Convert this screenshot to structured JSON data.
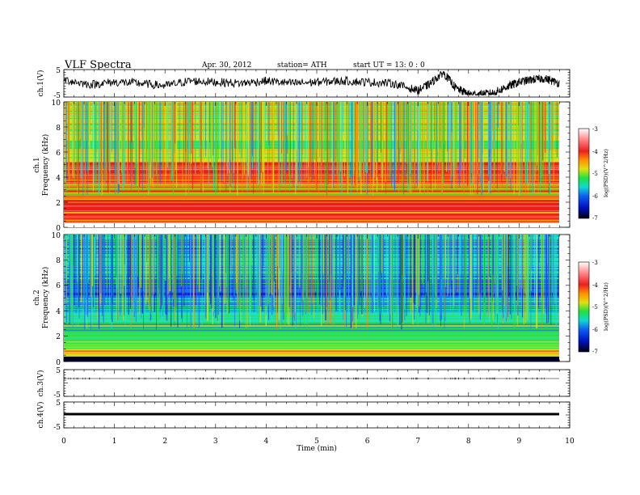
{
  "header": {
    "title": "VLF  Spectra",
    "date": "Apr. 30, 2012",
    "station": "station= ATH",
    "start": "start  UT  =   13: 0  : 0"
  },
  "panels": {
    "ch1_label": "ch.1(V)",
    "ch3_label": "ch.3(V)",
    "ch4_label": "ch.4(V)",
    "spec1_label": "ch.1",
    "spec2_label": "ch.2",
    "freq_label": "Frequency  (kHz)",
    "colorbar_label": "log(PSD)(V^2/Hz)"
  },
  "chart_data": [
    {
      "type": "line",
      "name": "ch1-waveform",
      "ylabel": "ch.1(V)",
      "ylim": [
        -5,
        5
      ],
      "yticks": [
        "5",
        "-5"
      ],
      "x": [
        0.0,
        0.5,
        1.0,
        1.5,
        2.0,
        2.5,
        3.0,
        3.5,
        4.0,
        4.5,
        5.0,
        5.5,
        6.0,
        6.5,
        7.0,
        7.25,
        7.5,
        7.75,
        8.0,
        8.25,
        8.5,
        8.75,
        9.0,
        9.25,
        9.5,
        9.8
      ],
      "values": [
        1.5,
        -0.5,
        0.5,
        0.0,
        -1.0,
        1.0,
        0.5,
        0.0,
        1.0,
        0.0,
        0.5,
        1.0,
        0.5,
        0.0,
        -3.0,
        0.0,
        4.5,
        -2.0,
        -4.5,
        -4.5,
        -4.0,
        -1.5,
        0.5,
        1.5,
        2.0,
        0.0
      ]
    },
    {
      "type": "heatmap",
      "name": "ch1-spectrogram",
      "ylabel": "Frequency  (kHz)",
      "ylim": [
        0,
        10
      ],
      "yticks": [
        "0",
        "2",
        "4",
        "6",
        "8",
        "10"
      ],
      "xlim": [
        0,
        10
      ],
      "value_range": [
        -7,
        -3
      ],
      "bands_khz": [
        {
          "from": 0.0,
          "to": 0.4,
          "level": -4.0
        },
        {
          "from": 0.4,
          "to": 2.5,
          "level": -3.7
        },
        {
          "from": 2.5,
          "to": 3.6,
          "level": -4.2
        },
        {
          "from": 3.6,
          "to": 5.2,
          "level": -3.6
        },
        {
          "from": 5.2,
          "to": 6.2,
          "level": -4.5
        },
        {
          "from": 6.2,
          "to": 7.0,
          "level": -5.0
        },
        {
          "from": 7.0,
          "to": 10.0,
          "level": -4.7
        }
      ]
    },
    {
      "type": "heatmap",
      "name": "ch2-spectrogram",
      "ylabel": "Frequency  (kHz)",
      "ylim": [
        0,
        10
      ],
      "yticks": [
        "0",
        "2",
        "4",
        "6",
        "8",
        "10"
      ],
      "xlim": [
        0,
        10
      ],
      "value_range": [
        -7,
        -3
      ],
      "bands_khz": [
        {
          "from": 0.0,
          "to": 0.4,
          "level": -6.8
        },
        {
          "from": 0.4,
          "to": 1.0,
          "level": -4.3
        },
        {
          "from": 1.0,
          "to": 3.0,
          "level": -5.2
        },
        {
          "from": 3.0,
          "to": 5.0,
          "level": -5.5
        },
        {
          "from": 5.0,
          "to": 6.5,
          "level": -5.9
        },
        {
          "from": 6.5,
          "to": 10.0,
          "level": -5.7
        }
      ]
    },
    {
      "type": "line",
      "name": "ch3-waveform",
      "ylabel": "ch.3(V)",
      "ylim": [
        -5,
        5
      ],
      "yticks": [
        "5",
        "-5"
      ],
      "x": [
        0,
        9.8
      ],
      "values": [
        0,
        0
      ]
    },
    {
      "type": "line",
      "name": "ch4-waveform",
      "ylabel": "ch.4(V)",
      "ylim": [
        -5,
        5
      ],
      "yticks": [
        "5",
        "-5"
      ],
      "x": [
        0,
        9.8
      ],
      "values": [
        0,
        0
      ]
    },
    {
      "type": "colorbar",
      "name": "colorbar",
      "ticks": [
        "-3",
        "-4",
        "-5",
        "-6",
        "-7"
      ]
    }
  ],
  "xaxis": {
    "xlabel": "Time  (min)",
    "xlim": [
      0,
      10
    ],
    "ticks": [
      "0",
      "1",
      "2",
      "3",
      "4",
      "5",
      "6",
      "7",
      "8",
      "9",
      "10"
    ]
  },
  "colors": {
    "c_m3": "#ff7a7a",
    "c_m35": "#ee1c1c",
    "c_m4": "#ff8a00",
    "c_m45": "#d8e01a",
    "c_m5": "#32e03a",
    "c_m55": "#1ee0c8",
    "c_m6": "#1e6ef0",
    "c_m65": "#0a1acc",
    "c_m7": "#000022"
  }
}
